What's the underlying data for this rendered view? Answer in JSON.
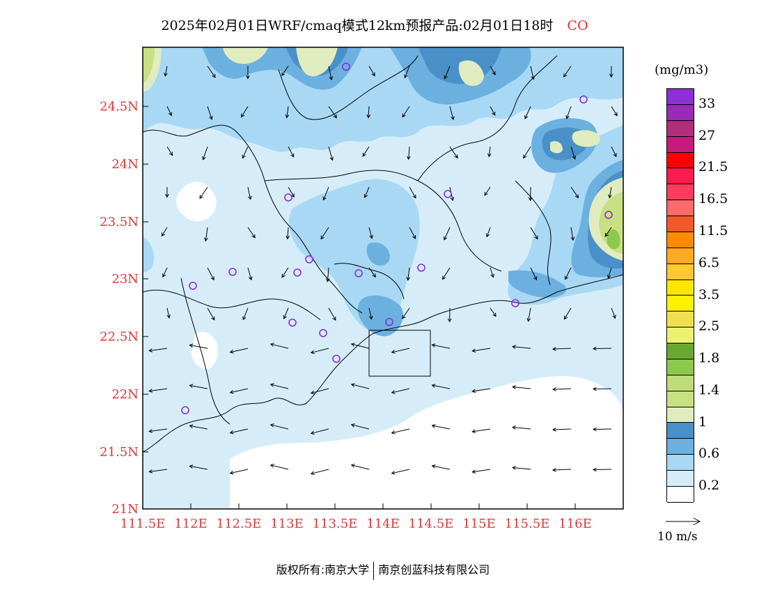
{
  "title": {
    "text": "2025年02月01日WRF/cmaq模式12km预报产品:02月01日18时",
    "pollutant": "CO"
  },
  "axes": {
    "x_ticks": [
      "111.5E",
      "112E",
      "112.5E",
      "113E",
      "113.5E",
      "114E",
      "114.5E",
      "115E",
      "115.5E",
      "116E"
    ],
    "y_ticks": [
      "24.5N",
      "24N",
      "23.5N",
      "23N",
      "22.5N",
      "22N",
      "21.5N",
      "21N"
    ]
  },
  "legend": {
    "unit": "(mg/m3)",
    "labels": [
      "33",
      "27",
      "21.5",
      "16.5",
      "11.5",
      "6.5",
      "3.5",
      "2.5",
      "1.8",
      "1.4",
      "1",
      "0.6",
      "0.2"
    ],
    "colors_top_to_bottom": [
      "#8e2ed6",
      "#9a2ab8",
      "#b22e78",
      "#c61a7e",
      "#ff0000",
      "#ff1a4f",
      "#ff3b5e",
      "#ff6a6a",
      "#f05a28",
      "#ff8c00",
      "#ffaa22",
      "#ffc830",
      "#ffe600",
      "#fff200",
      "#f0e050",
      "#eef070",
      "#6aa832",
      "#8cc84a",
      "#c0dc78",
      "#c8e080",
      "#e0ecc0",
      "#4a90c8",
      "#6cb0e0",
      "#a8d8f4",
      "#d6edf9",
      "#ffffff"
    ]
  },
  "vector_reference": {
    "label": "10 m/s"
  },
  "footer": {
    "left": "版权所有:南京大学",
    "right": "南京创蓝科技有限公司"
  },
  "map_colors": {
    "background": "#ffffff",
    "level_02": "#d6edf9",
    "level_06": "#a8d8f4",
    "level_06b": "#6cb0e0",
    "level_08": "#4a90c8",
    "level_10": "#e0ecc0",
    "level_12": "#c8e080",
    "level_14": "#8cc84a",
    "site_marker": "#8a2be2",
    "tick_label": "#e03535"
  }
}
